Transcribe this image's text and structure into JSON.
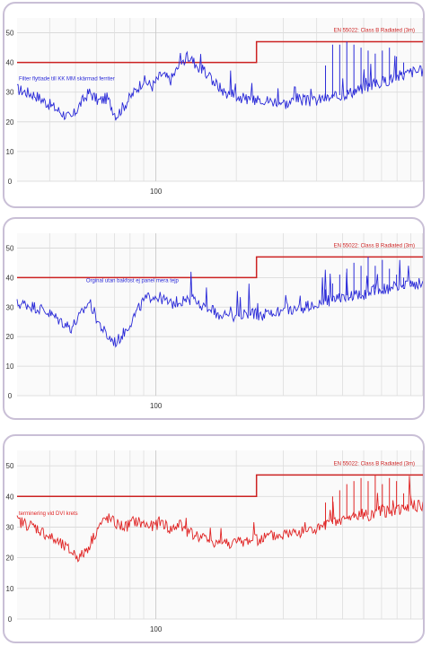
{
  "chart_data": [
    {
      "type": "line",
      "xscale": "log",
      "x_tick_label": "100",
      "y_ticks": [
        "0",
        "10",
        "20",
        "30",
        "40",
        "50"
      ],
      "ylim": [
        0,
        55
      ],
      "grid": true,
      "limit": {
        "label": "EN 55022: Class B Radiated (3m)",
        "y_low": 40,
        "y_high": 47
      },
      "annotation": "Filter flyttade till KK MM skärmad ferriter",
      "series_color": "#2a2ad8",
      "series": [
        {
          "name": "",
          "values": [
            31,
            30,
            29,
            27,
            25,
            23,
            21,
            26,
            30,
            27,
            28,
            22,
            26,
            30,
            34,
            32,
            36,
            34,
            39,
            42,
            39,
            36,
            33,
            30,
            29,
            28,
            27,
            28,
            27,
            27,
            26,
            28,
            27,
            27,
            28,
            28,
            29,
            30,
            31,
            32,
            33,
            34,
            35,
            36,
            37,
            37
          ]
        }
      ],
      "spikes": [
        39,
        46,
        46,
        47,
        46,
        45,
        44,
        43,
        44,
        45,
        42,
        40,
        38
      ]
    },
    {
      "type": "line",
      "xscale": "log",
      "x_tick_label": "100",
      "y_ticks": [
        "0",
        "10",
        "20",
        "30",
        "40",
        "50"
      ],
      "ylim": [
        0,
        55
      ],
      "grid": true,
      "limit": {
        "label": "EN 55022: Class B Radiated (3m)",
        "y_low": 40,
        "y_high": 47
      },
      "annotation": "Orginal utan bakfost ej panel mera tejp",
      "series_color": "#2a2ad8",
      "series": [
        {
          "name": "",
          "values": [
            31,
            31,
            30,
            29,
            27,
            25,
            23,
            27,
            32,
            25,
            20,
            18,
            22,
            27,
            32,
            34,
            33,
            31,
            32,
            33,
            31,
            30,
            28,
            27,
            27,
            28,
            28,
            27,
            28,
            28,
            29,
            29,
            30,
            31,
            32,
            32,
            33,
            34,
            34,
            35,
            36,
            36,
            37,
            37,
            38,
            38
          ]
        }
      ],
      "spikes": [
        36,
        38,
        41,
        43,
        45,
        44,
        47,
        44,
        46,
        43,
        41,
        40,
        39
      ]
    },
    {
      "type": "line",
      "xscale": "log",
      "x_tick_label": "100",
      "y_ticks": [
        "0",
        "10",
        "20",
        "30",
        "40",
        "50"
      ],
      "ylim": [
        0,
        55
      ],
      "grid": true,
      "limit": {
        "label": "EN 55022: Class B Radiated (3m)",
        "y_low": 40,
        "y_high": 47
      },
      "annotation": "terminering vid DVI krets",
      "series_color": "#e02424",
      "series": [
        {
          "name": "",
          "values": [
            32,
            31,
            30,
            28,
            26,
            24,
            22,
            20,
            24,
            30,
            33,
            31,
            30,
            32,
            31,
            30,
            32,
            29,
            31,
            28,
            27,
            26,
            25,
            25,
            25,
            25,
            26,
            26,
            27,
            27,
            28,
            28,
            29,
            29,
            30,
            31,
            32,
            33,
            34,
            34,
            35,
            35,
            36,
            36,
            37,
            37
          ]
        }
      ],
      "spikes": [
        38,
        40,
        42,
        44,
        45,
        46,
        45,
        47,
        44,
        46,
        45,
        41,
        40
      ]
    }
  ]
}
